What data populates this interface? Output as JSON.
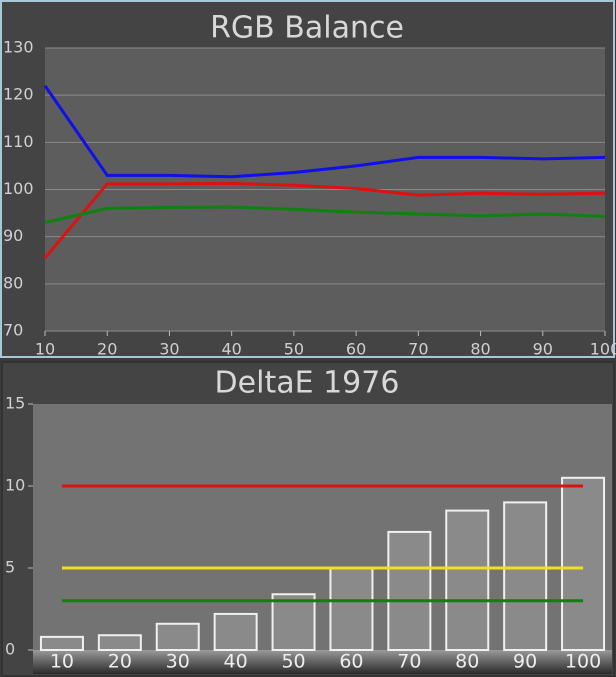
{
  "chart_data": [
    {
      "type": "line",
      "title": "RGB Balance",
      "x": [
        10,
        20,
        30,
        40,
        50,
        60,
        70,
        80,
        90,
        100
      ],
      "series": [
        {
          "name": "Red",
          "color": "#e01010",
          "values": [
            85.5,
            101.2,
            101.2,
            101.3,
            100.9,
            100.2,
            98.8,
            99.2,
            99,
            99.2
          ]
        },
        {
          "name": "Green",
          "color": "#108010",
          "values": [
            93,
            96,
            96.2,
            96.3,
            95.8,
            95.2,
            94.8,
            94.4,
            94.8,
            94.3
          ]
        },
        {
          "name": "Blue",
          "color": "#1010e8",
          "values": [
            122,
            103,
            103,
            102.7,
            103.6,
            105,
            106.8,
            106.8,
            106.5,
            106.8
          ]
        }
      ],
      "xlim": [
        10,
        100
      ],
      "xticks": [
        10,
        20,
        30,
        40,
        50,
        60,
        70,
        80,
        90,
        100
      ],
      "ylim": [
        70,
        130
      ],
      "yticks": [
        70,
        80,
        90,
        100,
        110,
        120,
        130
      ],
      "grid": true
    },
    {
      "type": "bar",
      "title": "DeltaE 1976",
      "categories": [
        "10",
        "20",
        "30",
        "40",
        "50",
        "60",
        "70",
        "80",
        "90",
        "100"
      ],
      "values": [
        0.8,
        0.9,
        1.6,
        2.2,
        3.4,
        5.0,
        7.2,
        8.5,
        9.0,
        10.5
      ],
      "color": "#8a8a8a",
      "reference_lines": [
        {
          "value": 10,
          "color": "#e01010"
        },
        {
          "value": 5,
          "color": "#f0e020"
        },
        {
          "value": 3,
          "color": "#108010"
        }
      ],
      "ylim": [
        0,
        15
      ],
      "yticks": [
        0,
        5,
        10,
        15
      ]
    }
  ]
}
